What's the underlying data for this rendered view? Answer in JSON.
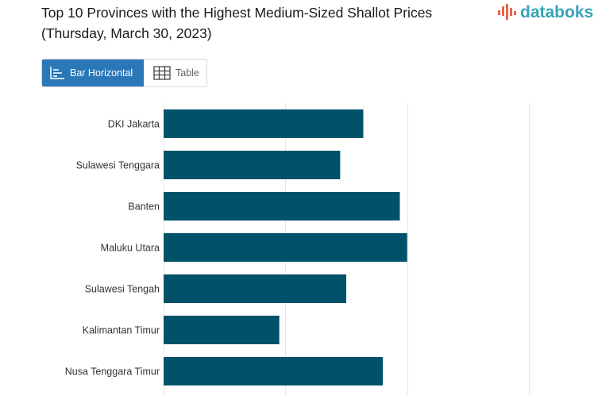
{
  "title": "Top 10 Provinces with the Highest Medium-Sized Shallot Prices (Thursday, March 30, 2023)",
  "brand": {
    "name": "databoks",
    "color": "#36a3b8",
    "accent": "#e8654a"
  },
  "tabs": [
    {
      "label": "Bar Horizontal",
      "icon": "bar-chart-icon",
      "active": true
    },
    {
      "label": "Table",
      "icon": "table-grid-icon",
      "active": false
    }
  ],
  "colors": {
    "bar": "#00526b",
    "tab_active": "#2a78b8",
    "grid": "#e6e6e6"
  },
  "chart_data": {
    "type": "bar",
    "orientation": "horizontal",
    "title": "",
    "xlabel": "",
    "ylabel": "",
    "grid": true,
    "categories": [
      "DKI Jakarta",
      "Sulawesi Tenggara",
      "Banten",
      "Maluku Utara",
      "Sulawesi Tengah",
      "Kalimantan Timur",
      "Nusa Tenggara Timur"
    ],
    "values": [
      82000,
      72500,
      97000,
      100000,
      75000,
      47500,
      90000
    ],
    "xlim": [
      0,
      150000
    ]
  }
}
